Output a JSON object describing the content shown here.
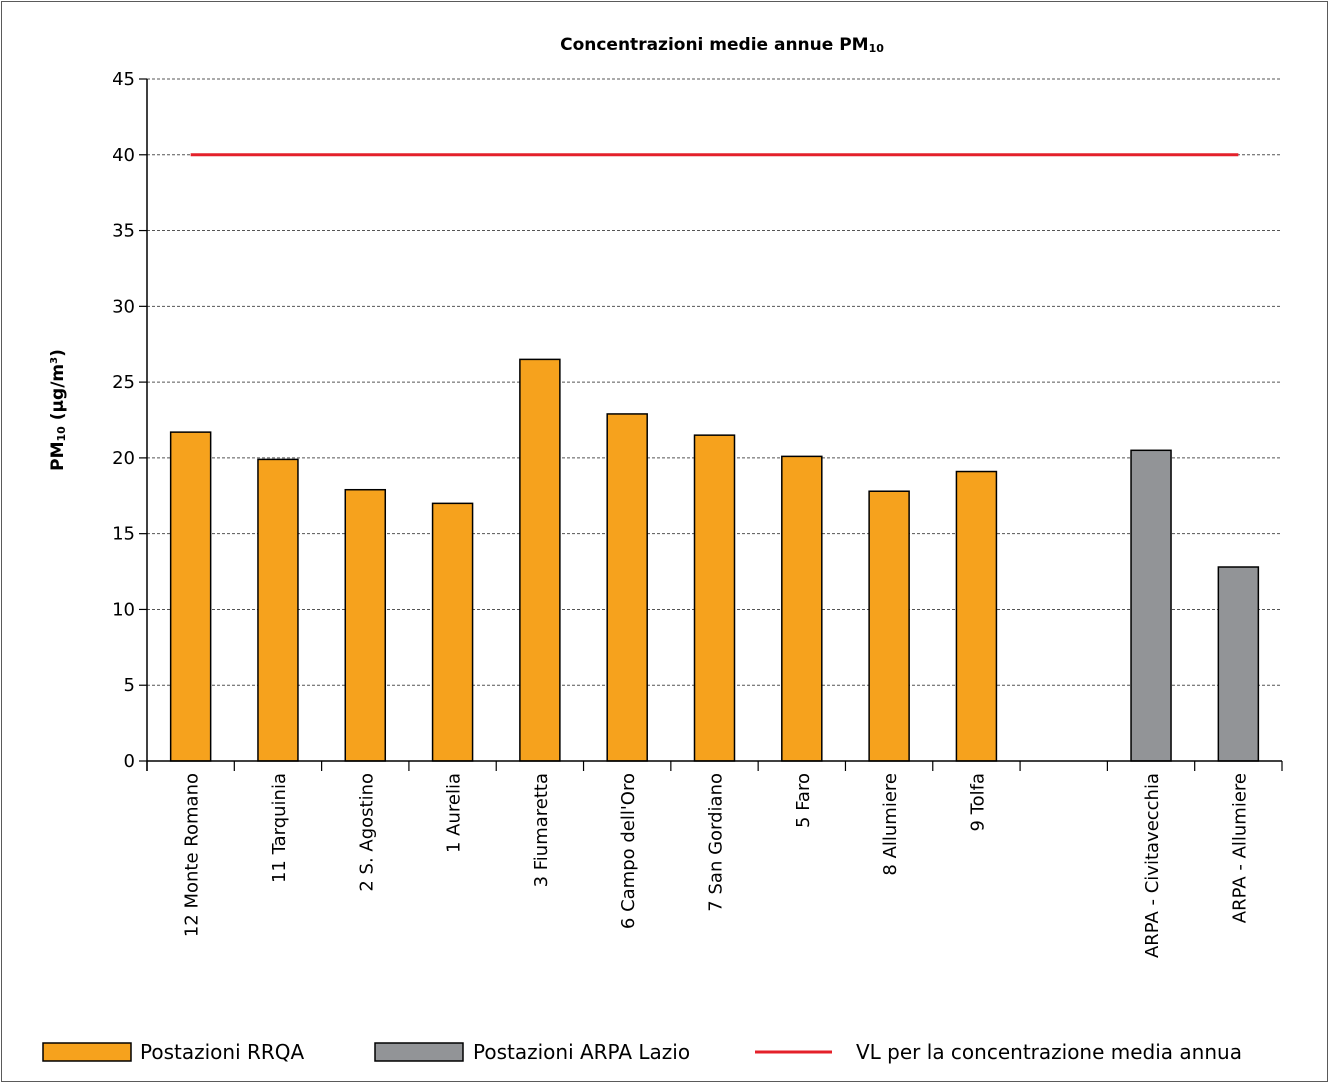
{
  "chart_data": {
    "type": "bar",
    "title": "Concentrazioni medie annue PM",
    "title_sub": "10",
    "ylabel": "PM",
    "ylabel_sub": "10",
    "ylabel_unit": " (µg/m",
    "ylabel_sup": "3",
    "ylabel_close": ")",
    "ylim": [
      0,
      45
    ],
    "yticks": [
      0,
      5,
      10,
      15,
      20,
      25,
      30,
      35,
      40,
      45
    ],
    "grid": true,
    "categories": [
      "12 Monte Romano",
      "11 Tarquinia",
      "2 S. Agostino",
      "1 Aurelia",
      "3 Fiumaretta",
      "6 Campo dell'Oro",
      "7 San Gordiano",
      "5 Faro",
      "8 Allumiere",
      "9 Tolfa",
      "",
      "ARPA - Civitavecchia",
      "ARPA - Allumiere"
    ],
    "values": [
      21.7,
      19.9,
      17.9,
      17.0,
      26.5,
      22.9,
      21.5,
      20.1,
      17.8,
      19.1,
      null,
      20.5,
      12.8
    ],
    "groups": [
      "rrqa",
      "rrqa",
      "rrqa",
      "rrqa",
      "rrqa",
      "rrqa",
      "rrqa",
      "rrqa",
      "rrqa",
      "rrqa",
      null,
      "arpa",
      "arpa"
    ],
    "limit_line": {
      "value": 40,
      "label": "VL per la concentrazione media annua",
      "color": "#e4202a"
    },
    "colors": {
      "rrqa": "#f6a21d",
      "arpa": "#929497",
      "grid": "#555555",
      "axis": "#000000"
    },
    "legend": [
      {
        "label": "Postazioni RRQA",
        "kind": "box",
        "group": "rrqa"
      },
      {
        "label": "Postazioni ARPA Lazio",
        "kind": "box",
        "group": "arpa"
      },
      {
        "label": "VL per la concentrazione media annua",
        "kind": "line"
      }
    ],
    "legend_position": "bottom"
  }
}
